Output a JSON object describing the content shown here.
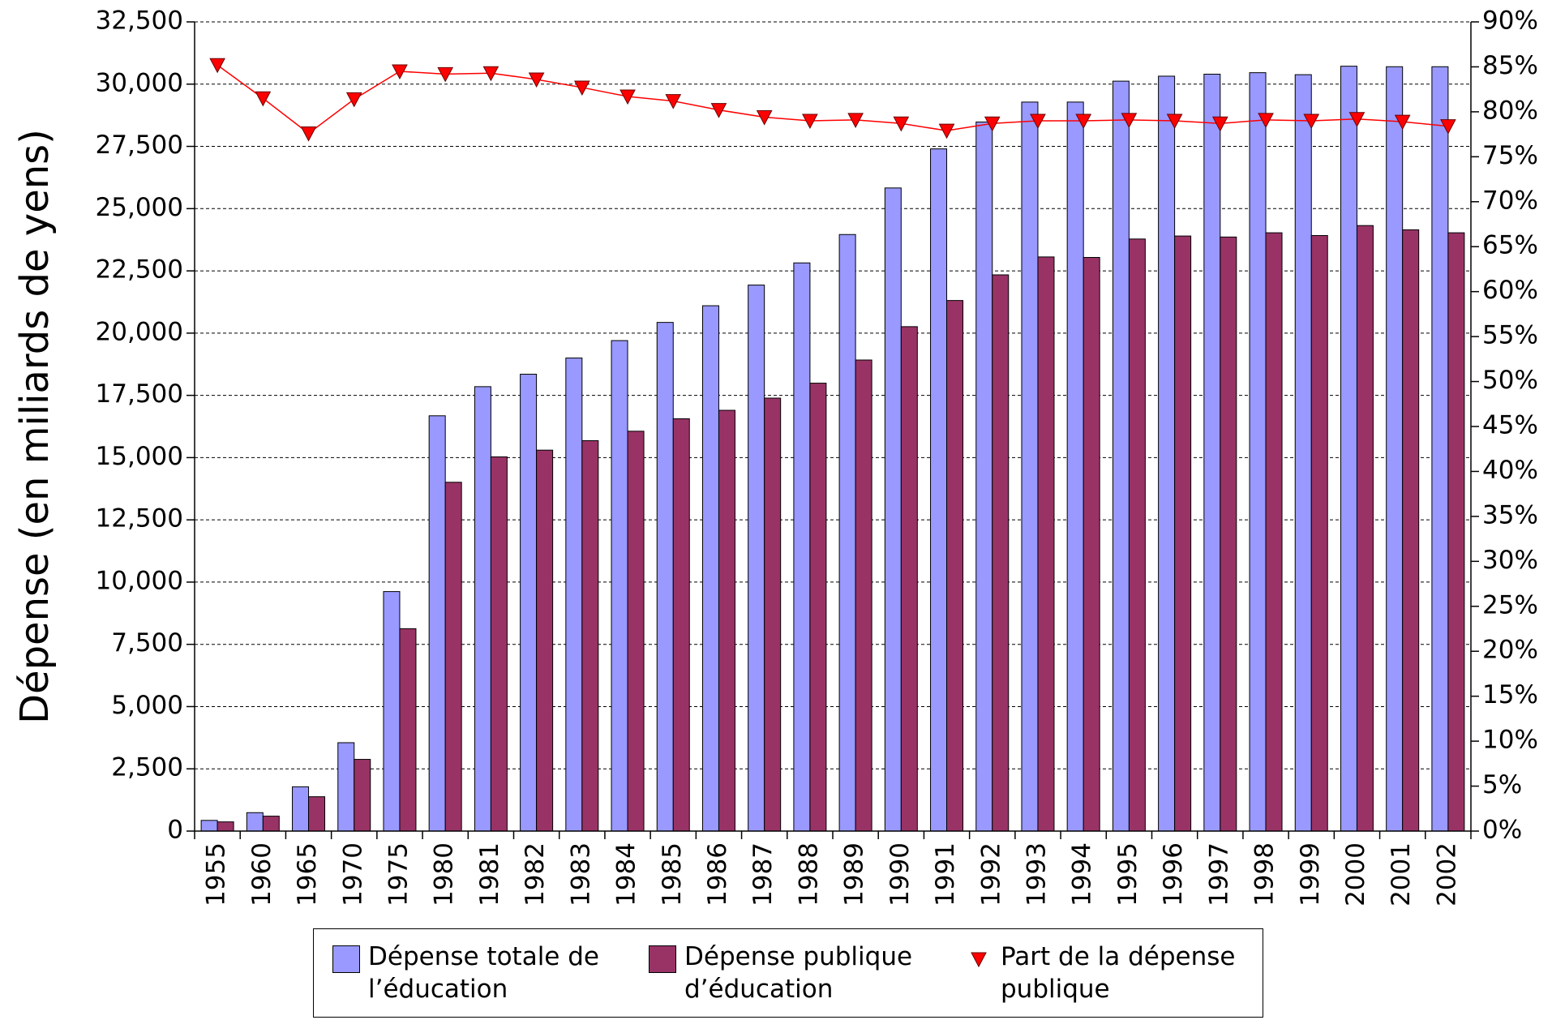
{
  "chart_data": {
    "type": "bar",
    "ylabel": "Dépense (en miliards de yens)",
    "categories": [
      "1955",
      "1960",
      "1965",
      "1970",
      "1975",
      "1980",
      "1981",
      "1982",
      "1983",
      "1984",
      "1985",
      "1986",
      "1987",
      "1988",
      "1989",
      "1990",
      "1991",
      "1992",
      "1993",
      "1994",
      "1995",
      "1996",
      "1997",
      "1998",
      "1999",
      "2000",
      "2001",
      "2002"
    ],
    "series": [
      {
        "name": "Dépense totale de l’éducation",
        "color": "#9999ff",
        "type": "bar",
        "values": [
          430,
          740,
          1780,
          3550,
          9620,
          16680,
          17850,
          18350,
          19000,
          19700,
          20430,
          21100,
          21930,
          22820,
          23960,
          25830,
          27400,
          28480,
          29280,
          29280,
          30120,
          30320,
          30400,
          30460,
          30380,
          30720,
          30700,
          30700
        ]
      },
      {
        "name": "Dépense publique d’éducation",
        "color": "#993366",
        "type": "bar",
        "values": [
          370,
          600,
          1380,
          2880,
          8130,
          14010,
          15030,
          15300,
          15680,
          16060,
          16560,
          16900,
          17390,
          17990,
          18920,
          20260,
          21310,
          22340,
          23060,
          23040,
          23780,
          23900,
          23860,
          24030,
          23920,
          24320,
          24150,
          24030
        ]
      },
      {
        "name": "Part de la dépense publique",
        "color": "#ff0000",
        "type": "line",
        "axis": "y2",
        "values": [
          85.2,
          81.5,
          77.6,
          81.4,
          84.5,
          84.2,
          84.3,
          83.6,
          82.7,
          81.7,
          81.2,
          80.2,
          79.4,
          79.0,
          79.1,
          78.7,
          77.9,
          78.7,
          79.0,
          79.0,
          79.1,
          79.0,
          78.7,
          79.1,
          79.0,
          79.2,
          78.9,
          78.4
        ]
      }
    ],
    "ylim": [
      0,
      32500
    ],
    "yticks": [
      0,
      {
        "value": 2500,
        "label": "2,500"
      },
      {
        "value": 5000,
        "label": "5,000"
      },
      {
        "value": 7500,
        "label": "7,500"
      },
      {
        "value": 10000,
        "label": "10,000"
      },
      {
        "value": 12500,
        "label": "12,500"
      },
      {
        "value": 15000,
        "label": "15,000"
      },
      {
        "value": 17500,
        "label": "17,500"
      },
      {
        "value": 20000,
        "label": "20,000"
      },
      {
        "value": 22500,
        "label": "22,500"
      },
      {
        "value": 25000,
        "label": "25,000"
      },
      {
        "value": 27500,
        "label": "27,500"
      },
      {
        "value": 30000,
        "label": "30,000"
      },
      {
        "value": 32500,
        "label": "32,500"
      }
    ],
    "y2lim": [
      0,
      90
    ],
    "y2ticks": [
      {
        "value": 0,
        "label": "0%"
      },
      {
        "value": 5,
        "label": "5%"
      },
      {
        "value": 10,
        "label": "10%"
      },
      {
        "value": 15,
        "label": "15%"
      },
      {
        "value": 20,
        "label": "20%"
      },
      {
        "value": 25,
        "label": "25%"
      },
      {
        "value": 30,
        "label": "30%"
      },
      {
        "value": 35,
        "label": "35%"
      },
      {
        "value": 40,
        "label": "40%"
      },
      {
        "value": 45,
        "label": "45%"
      },
      {
        "value": 50,
        "label": "50%"
      },
      {
        "value": 55,
        "label": "55%"
      },
      {
        "value": 60,
        "label": "60%"
      },
      {
        "value": 65,
        "label": "65%"
      },
      {
        "value": 70,
        "label": "70%"
      },
      {
        "value": 75,
        "label": "75%"
      },
      {
        "value": 80,
        "label": "80%"
      },
      {
        "value": 85,
        "label": "85%"
      },
      {
        "value": 90,
        "label": "90%"
      }
    ],
    "grid": true
  }
}
